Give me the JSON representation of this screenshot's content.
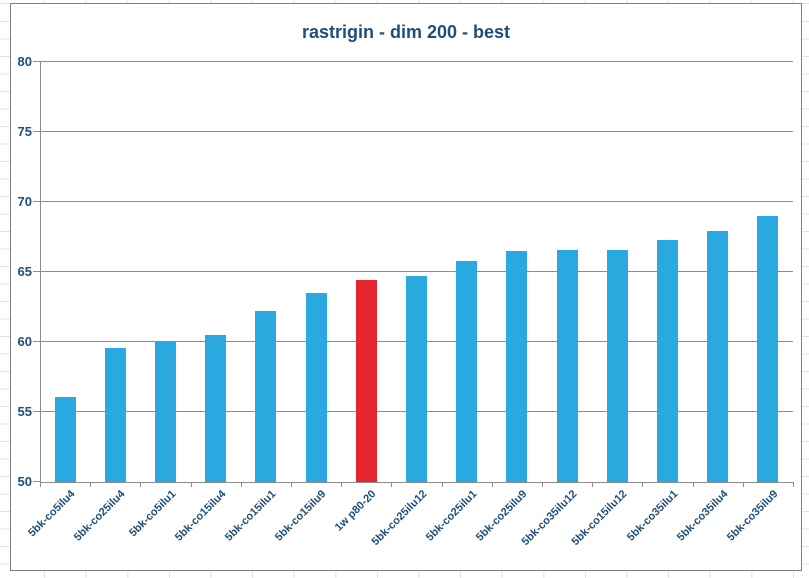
{
  "chart_data": {
    "type": "bar",
    "title": "rastrigin - dim 200 - best",
    "categories": [
      "5bk-co5ilu4",
      "5bk-co25ilu4",
      "5bk-co5ilu1",
      "5bk-co15ilu4",
      "5bk-co15ilu1",
      "5bk-co15ilu9",
      "1w p80-20",
      "5bk-co25ilu12",
      "5bk-co25ilu1",
      "5bk-co25ilu9",
      "5bk-co35ilu12",
      "5bk-co15ilu12",
      "5bk-co35ilu1",
      "5bk-co35ilu4",
      "5bk-co35ilu9"
    ],
    "values": [
      56.1,
      59.6,
      60.0,
      60.5,
      62.2,
      63.5,
      64.4,
      64.7,
      65.8,
      66.5,
      66.6,
      66.6,
      67.3,
      67.9,
      69.0
    ],
    "highlight_index": 6,
    "xlabel": "",
    "ylabel": "",
    "ylim": [
      50,
      80
    ],
    "yticks": [
      50,
      55,
      60,
      65,
      70,
      75,
      80
    ],
    "grid": "horizontal",
    "legend": "none",
    "colors": {
      "bar": "#29a9e0",
      "highlight": "#e62530",
      "title_text": "#1f4e79",
      "axis_text": "#1f4e79",
      "gridline": "#8c8c8c",
      "axis_line": "#8c8c8c",
      "chart_border": "#7f7f7f",
      "sheet_gridline": "#dde3ec"
    }
  }
}
